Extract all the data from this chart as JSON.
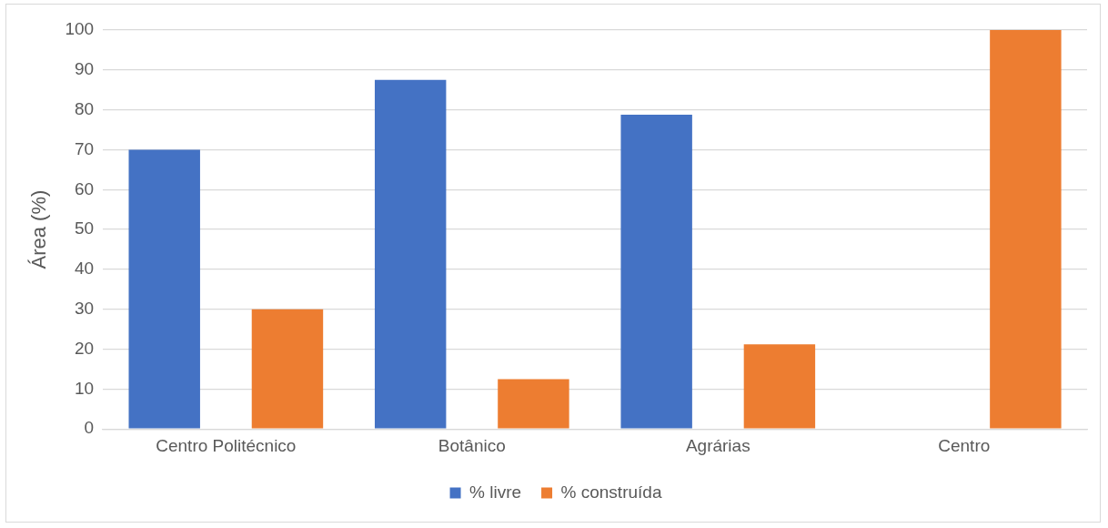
{
  "chart_data": {
    "type": "bar",
    "ylabel": "Área (%)",
    "categories": [
      "Centro Politécnico",
      "Botânico",
      "Agrárias",
      "Centro"
    ],
    "series": [
      {
        "name": "% livre",
        "color": "#4472c4",
        "values": [
          70,
          87.5,
          78.8,
          0
        ]
      },
      {
        "name": "% construída",
        "color": "#ed7d31",
        "values": [
          30,
          12.5,
          21.2,
          100
        ]
      }
    ],
    "ylim": [
      0,
      100
    ],
    "yticks": [
      0,
      10,
      20,
      30,
      40,
      50,
      60,
      70,
      80,
      90,
      100
    ],
    "grid": "y",
    "legend": "bottom"
  }
}
